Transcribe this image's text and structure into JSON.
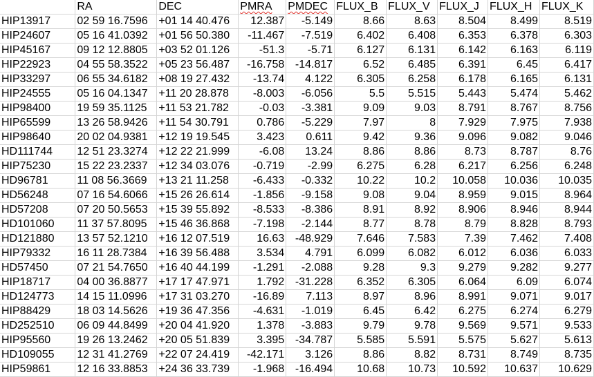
{
  "headers": [
    {
      "text": "",
      "spell": false
    },
    {
      "text": "RA",
      "spell": false
    },
    {
      "text": "DEC",
      "spell": false
    },
    {
      "text": "PMRA",
      "spell": true
    },
    {
      "text": "PMDEC",
      "spell": true
    },
    {
      "text": "FLUX_B",
      "spell": false
    },
    {
      "text": "FLUX_V",
      "spell": false
    },
    {
      "text": "FLUX_J",
      "spell": false
    },
    {
      "text": "FLUX_H",
      "spell": false
    },
    {
      "text": "FLUX_K",
      "spell": false
    }
  ],
  "rows": [
    [
      "HIP13917",
      "02 59 16.7596",
      "+01 14 40.476",
      "12.387",
      "-5.149",
      "8.66",
      "8.63",
      "8.504",
      "8.499",
      "8.519"
    ],
    [
      "HIP24607",
      "05 16 41.0392",
      "+01 56 50.380",
      "-11.467",
      "-7.519",
      "6.402",
      "6.408",
      "6.353",
      "6.378",
      "6.303"
    ],
    [
      "HIP45167",
      "09 12 12.8805",
      "+03 52 01.126",
      "-51.3",
      "-5.71",
      "6.127",
      "6.131",
      "6.142",
      "6.163",
      "6.119"
    ],
    [
      "HIP22923",
      "04 55 58.3522",
      "+05 23 56.487",
      "-16.758",
      "-14.817",
      "6.52",
      "6.485",
      "6.391",
      "6.45",
      "6.417"
    ],
    [
      "HIP33297",
      "06 55 34.6182",
      "+08 19 27.432",
      "-13.74",
      "4.122",
      "6.305",
      "6.258",
      "6.178",
      "6.165",
      "6.131"
    ],
    [
      "HIP24555",
      "05 16 04.1347",
      "+11 20 28.878",
      "-8.003",
      "-6.056",
      "5.5",
      "5.515",
      "5.443",
      "5.474",
      "5.462"
    ],
    [
      "HIP98400",
      "19 59 35.1125",
      "+11 53 21.782",
      "-0.03",
      "-3.381",
      "9.09",
      "9.03",
      "8.791",
      "8.767",
      "8.756"
    ],
    [
      "HIP65599",
      "13 26 58.9426",
      "+11 54 30.791",
      "0.786",
      "-5.229",
      "7.97",
      "8",
      "7.929",
      "7.975",
      "7.938"
    ],
    [
      "HIP98640",
      "20 02 04.9381",
      "+12 19 19.545",
      "3.423",
      "0.611",
      "9.42",
      "9.36",
      "9.096",
      "9.082",
      "9.046"
    ],
    [
      "HD111744",
      "12 51 23.3274",
      "+12 22 21.999",
      "-6.08",
      "13.24",
      "8.86",
      "8.86",
      "8.73",
      "8.787",
      "8.76"
    ],
    [
      "HIP75230",
      "15 22 23.2337",
      "+12 34 03.076",
      "-0.719",
      "-2.99",
      "6.275",
      "6.28",
      "6.217",
      "6.256",
      "6.248"
    ],
    [
      "HD96781",
      "11 08 56.3669",
      "+13 21 11.258",
      "-6.433",
      "-0.332",
      "10.22",
      "10.2",
      "10.058",
      "10.036",
      "10.035"
    ],
    [
      "HD56248",
      "07 16 54.6066",
      "+15 26 26.614",
      "-1.856",
      "-9.158",
      "9.08",
      "9.04",
      "8.959",
      "9.015",
      "8.964"
    ],
    [
      "HD57208",
      "07 20 50.5653",
      "+15 39 55.892",
      "-8.533",
      "-8.386",
      "8.91",
      "8.92",
      "8.906",
      "8.946",
      "8.944"
    ],
    [
      "HD101060",
      "11 37 57.8095",
      "+15 46 36.868",
      "-7.198",
      "-2.144",
      "8.77",
      "8.78",
      "8.79",
      "8.828",
      "8.793"
    ],
    [
      "HD121880",
      "13 57 52.1210",
      "+16 12 07.519",
      "16.63",
      "-48.929",
      "7.646",
      "7.583",
      "7.39",
      "7.462",
      "7.408"
    ],
    [
      "HIP79332",
      "16 11 28.7384",
      "+16 39 56.488",
      "3.534",
      "4.791",
      "6.099",
      "6.082",
      "6.012",
      "6.036",
      "6.033"
    ],
    [
      "HD57450",
      "07 21 54.7650",
      "+16 40 44.199",
      "-1.291",
      "-2.088",
      "9.28",
      "9.3",
      "9.279",
      "9.282",
      "9.277"
    ],
    [
      "HIP18717",
      "04 00 36.8877",
      "+17 17 47.971",
      "1.792",
      "-31.228",
      "6.352",
      "6.305",
      "6.064",
      "6.09",
      "6.074"
    ],
    [
      "HD124773",
      "14 15 11.0996",
      "+17 31 03.270",
      "-16.89",
      "7.113",
      "8.97",
      "8.96",
      "8.991",
      "9.071",
      "9.017"
    ],
    [
      "HIP88429",
      "18 03 14.5626",
      "+19 36 47.356",
      "-4.631",
      "-1.019",
      "6.45",
      "6.42",
      "6.275",
      "6.274",
      "6.279"
    ],
    [
      "HD252510",
      "06 09 44.8499",
      "+20 04 41.920",
      "1.378",
      "-3.883",
      "9.79",
      "9.78",
      "9.569",
      "9.571",
      "9.533"
    ],
    [
      "HIP95560",
      "19 26 13.2462",
      "+20 05 51.839",
      "3.395",
      "-34.787",
      "5.585",
      "5.591",
      "5.575",
      "5.627",
      "5.613"
    ],
    [
      "HD109055",
      "12 31 41.2769",
      "+22 07 24.419",
      "-42.171",
      "3.126",
      "8.86",
      "8.82",
      "8.731",
      "8.749",
      "8.735"
    ],
    [
      "HIP59861",
      "12 16 33.8853",
      "+24 36 33.739",
      "-1.968",
      "-16.494",
      "10.68",
      "10.73",
      "10.592",
      "10.637",
      "10.629"
    ]
  ]
}
